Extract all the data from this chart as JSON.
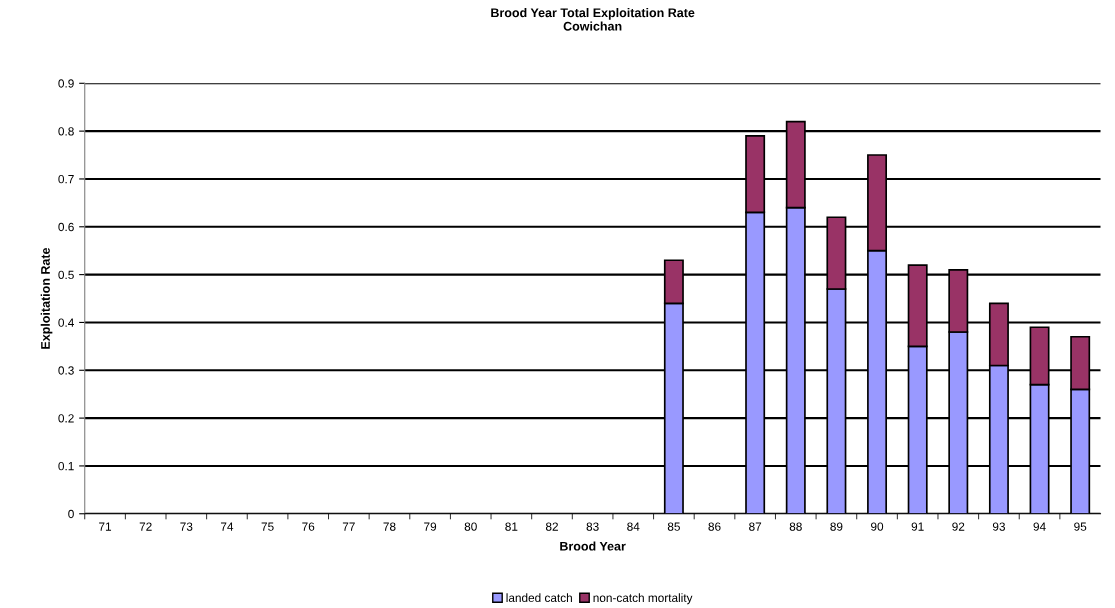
{
  "chart_data": {
    "type": "bar",
    "title": "Brood Year Total Exploitation Rate\nCowichan",
    "xlabel": "Brood Year",
    "ylabel": "Exploitation Rate",
    "categories": [
      "71",
      "72",
      "73",
      "74",
      "75",
      "76",
      "77",
      "78",
      "79",
      "80",
      "81",
      "82",
      "83",
      "84",
      "85",
      "86",
      "87",
      "88",
      "89",
      "90",
      "91",
      "92",
      "93",
      "94",
      "95"
    ],
    "stacked": true,
    "series": [
      {
        "name": "landed catch",
        "color": "#9999ff",
        "values": [
          null,
          null,
          null,
          null,
          null,
          null,
          null,
          null,
          null,
          null,
          null,
          null,
          null,
          null,
          0.44,
          null,
          0.63,
          0.64,
          0.47,
          0.55,
          0.35,
          0.38,
          0.31,
          0.27,
          0.26
        ]
      },
      {
        "name": "non-catch mortality",
        "color": "#993366",
        "values": [
          null,
          null,
          null,
          null,
          null,
          null,
          null,
          null,
          null,
          null,
          null,
          null,
          null,
          null,
          0.09,
          null,
          0.16,
          0.18,
          0.15,
          0.2,
          0.17,
          0.13,
          0.13,
          0.12,
          0.11
        ]
      }
    ],
    "ylim": [
      0,
      0.9
    ],
    "yticks": [
      0,
      0.1,
      0.2,
      0.3,
      0.4,
      0.5,
      0.6,
      0.7,
      0.8,
      0.9
    ],
    "grid": "y",
    "legend": "bottom"
  }
}
